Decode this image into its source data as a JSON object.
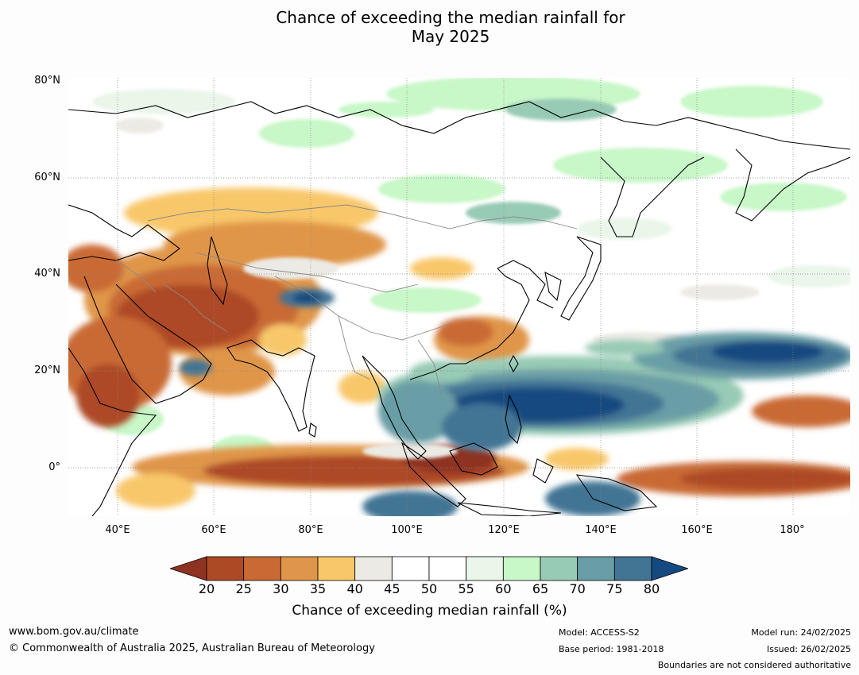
{
  "title": {
    "line1": "Chance of exceeding the median rainfall for",
    "line2": "May 2025"
  },
  "map": {
    "lat_labels": [
      "80°N",
      "60°N",
      "40°N",
      "20°N",
      "0°"
    ],
    "lon_labels": [
      "40°E",
      "60°E",
      "80°E",
      "100°E",
      "120°E",
      "140°E",
      "160°E",
      "180°"
    ]
  },
  "colorbar": {
    "ticks": [
      "20",
      "25",
      "30",
      "35",
      "40",
      "45",
      "50",
      "55",
      "60",
      "65",
      "70",
      "75",
      "80"
    ],
    "colors": [
      "#8e3222",
      "#ad4a26",
      "#c96a35",
      "#e0964a",
      "#f8c76a",
      "#eceae4",
      "#ffffff",
      "#ffffff",
      "#eaf6ea",
      "#c8f7c8",
      "#98cbb5",
      "#6a9ea6",
      "#427494",
      "#144a80"
    ],
    "label": "Chance of exceeding median rainfall (%)"
  },
  "footer": {
    "website": "www.bom.gov.au/climate",
    "copyright": "© Commonwealth of Australia 2025, Australian Bureau of Meteorology",
    "model": "Model: ACCESS-S2",
    "base_period": "Base period: 1981-2018",
    "model_run": "Model run: 24/02/2025",
    "issued": "Issued: 26/02/2025",
    "disclaimer": "Boundaries are not considered authoritative"
  }
}
